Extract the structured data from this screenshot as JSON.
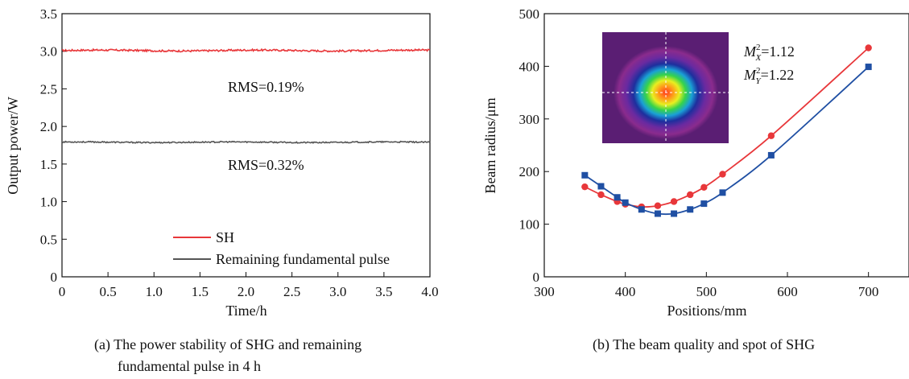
{
  "chart_data": [
    {
      "type": "line",
      "xlabel": "Time/h",
      "ylabel": "Output power/W",
      "xlim": [
        0,
        4.0
      ],
      "ylim": [
        0,
        3.5
      ],
      "xticks": [
        "0",
        "0.5",
        "1.0",
        "1.5",
        "2.0",
        "2.5",
        "3.0",
        "3.5",
        "4.0"
      ],
      "yticks": [
        "0",
        "0.5",
        "1.0",
        "1.5",
        "2.0",
        "2.5",
        "3.0",
        "3.5"
      ],
      "series": [
        {
          "name": "SH",
          "color": "#e8373a",
          "mean": 3.01
        },
        {
          "name": "Remaining fundamental pulse",
          "color": "#555555",
          "mean": 1.79
        }
      ],
      "annotations": [
        "RMS=0.19%",
        "RMS=0.32%"
      ],
      "legend_position": "bottom-right",
      "caption_lines": [
        "(a) The power stability of SHG and remaining",
        "fundamental pulse in 4 h"
      ]
    },
    {
      "type": "line",
      "xlabel": "Positions/mm",
      "ylabel": "Beam radius/μm",
      "xlim": [
        300,
        750
      ],
      "ylim": [
        0,
        500
      ],
      "xticks": [
        "300",
        "400",
        "500",
        "600",
        "700"
      ],
      "yticks": [
        "0",
        "100",
        "200",
        "300",
        "400",
        "500"
      ],
      "series": [
        {
          "color": "#e8373a",
          "marker": "circle",
          "x": [
            350,
            370,
            390,
            400,
            420,
            440,
            460,
            480,
            497,
            520,
            580,
            700
          ],
          "y": [
            171,
            156,
            143,
            138,
            133,
            135,
            143,
            156,
            170,
            195,
            268,
            435
          ]
        },
        {
          "color": "#1f4fa3",
          "marker": "square",
          "x": [
            350,
            370,
            390,
            400,
            420,
            440,
            460,
            480,
            497,
            520,
            580,
            700
          ],
          "y": [
            193,
            172,
            151,
            141,
            128,
            120,
            120,
            128,
            139,
            160,
            231,
            399
          ]
        }
      ],
      "annotations": [
        {
          "symbol": "M",
          "sup": "2",
          "sub": "X",
          "value": "=1.12"
        },
        {
          "symbol": "M",
          "sup": "2",
          "sub": "Y",
          "value": "=1.22"
        }
      ],
      "inset": "beam spot image with crosshair",
      "caption_lines": [
        "(b) The beam quality and spot of SHG"
      ]
    }
  ]
}
